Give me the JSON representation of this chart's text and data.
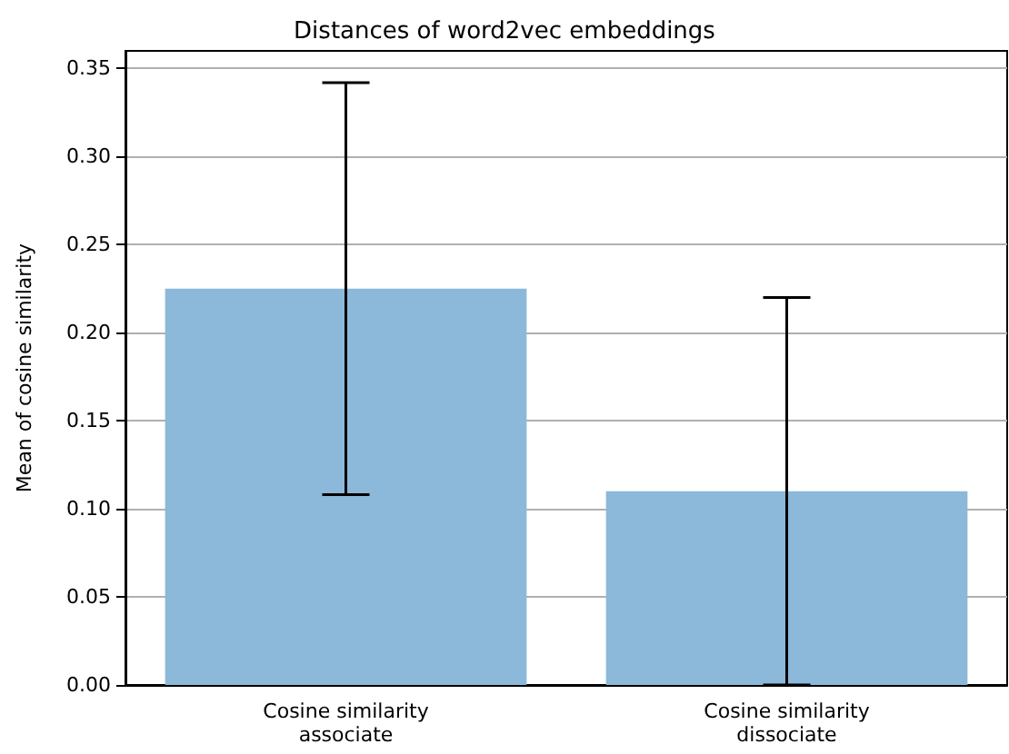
{
  "chart_data": {
    "type": "bar",
    "title": "Distances of word2vec embeddings",
    "ylabel": "Mean of cosine similarity",
    "categories": [
      "Cosine similarity\nassociate",
      "Cosine similarity\ndissociate"
    ],
    "values": [
      0.225,
      0.11
    ],
    "errors": [
      [
        0.108,
        0.342
      ],
      [
        0.0,
        0.22
      ]
    ],
    "color": "#8cb8d9",
    "ylim": [
      0,
      0.36
    ],
    "yticks": [
      {
        "value": 0,
        "label": "0.00"
      },
      0.05,
      {
        "value": 0.1,
        "label": "0.10"
      },
      0.15,
      {
        "value": 0.2,
        "label": "0.20"
      },
      0.25,
      {
        "value": 0.3,
        "label": "0.30"
      },
      0.35
    ],
    "grid": "y"
  }
}
